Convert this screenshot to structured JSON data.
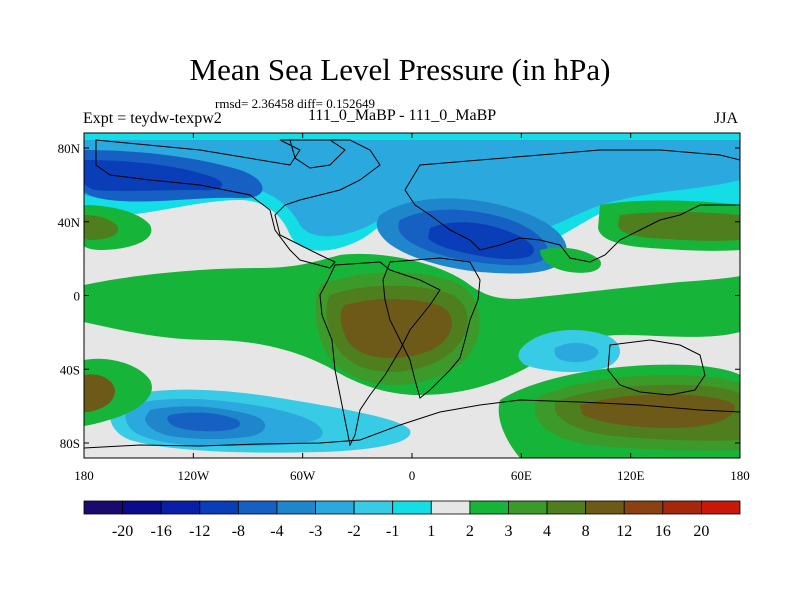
{
  "chart_data": {
    "type": "heatmap",
    "title": "Mean Sea Level Pressure (in hPa)",
    "stats_text": "rmsd= 2.36458 diff= 0.152649",
    "left_label": "Expt = teydw-texpw2",
    "center_label": "111_0_MaBP - 111_0_MaBP",
    "right_label": "JJA",
    "x_ticks": [
      "180",
      "120W",
      "60W",
      "0",
      "60E",
      "120E",
      "180"
    ],
    "y_ticks": [
      "80N",
      "40N",
      "0",
      "40S",
      "80S"
    ],
    "x_range": [
      -180,
      180
    ],
    "y_range": [
      -90,
      90
    ],
    "colorbar_levels": [
      "-20",
      "-16",
      "-12",
      "-8",
      "-4",
      "-3",
      "-2",
      "-1",
      "1",
      "2",
      "3",
      "4",
      "8",
      "12",
      "16",
      "20"
    ],
    "colorbar_colors": [
      "#1a0a6e",
      "#0b0b8c",
      "#0a1fa8",
      "#0a3db8",
      "#1560c2",
      "#1f86cc",
      "#2ba8dd",
      "#37cbe6",
      "#14dde6",
      "#e6e6e6",
      "#17b43a",
      "#3c9a2a",
      "#4f7e1e",
      "#6e5a18",
      "#8a4212",
      "#a6280c",
      "#c8180a"
    ],
    "regions": [
      {
        "name": "arctic-low",
        "lon": [
          -180,
          180
        ],
        "lat": [
          55,
          90
        ],
        "level": "-2"
      },
      {
        "name": "north-pacific-low",
        "lon": [
          -180,
          -60
        ],
        "lat": [
          50,
          80
        ],
        "level": "-8"
      },
      {
        "name": "asia-monsoon-low",
        "lon": [
          0,
          100
        ],
        "lat": [
          20,
          60
        ],
        "level": "-8"
      },
      {
        "name": "south-atlantic-high",
        "lon": [
          -60,
          30
        ],
        "lat": [
          -50,
          20
        ],
        "level": "4"
      },
      {
        "name": "south-indian-low",
        "lon": [
          40,
          90
        ],
        "lat": [
          -35,
          -15
        ],
        "level": "-2"
      },
      {
        "name": "south-pacific-low",
        "lon": [
          -170,
          -40
        ],
        "lat": [
          -90,
          -60
        ],
        "level": "-3"
      },
      {
        "name": "australia-high",
        "lon": [
          70,
          180
        ],
        "lat": [
          -90,
          -50
        ],
        "level": "8"
      },
      {
        "name": "north-pacific-high",
        "lon": [
          110,
          180
        ],
        "lat": [
          25,
          50
        ],
        "level": "4"
      }
    ]
  }
}
